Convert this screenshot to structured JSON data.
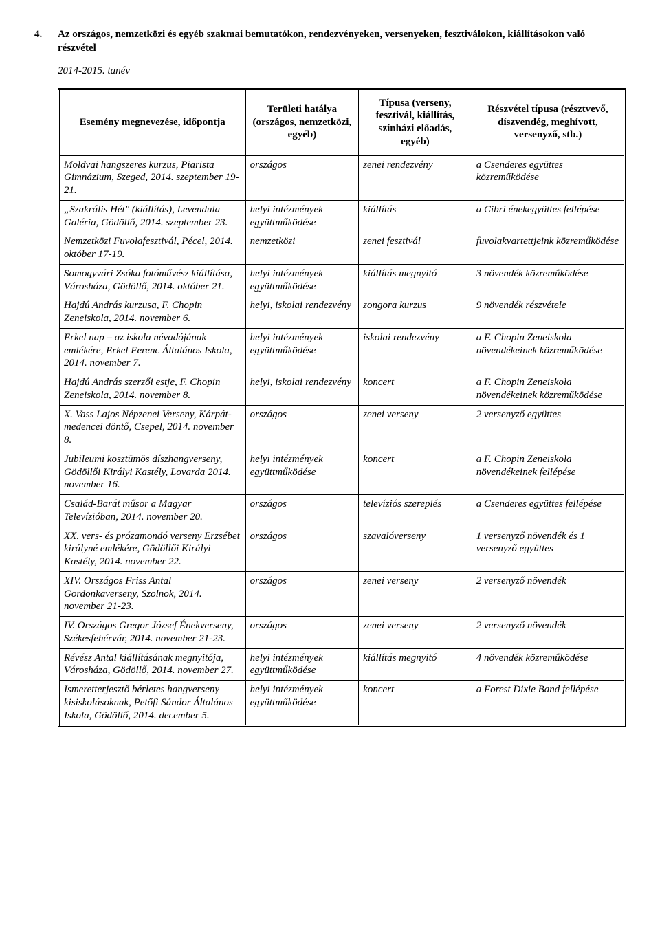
{
  "heading": {
    "number": "4.",
    "title": "Az országos, nemzetközi és egyéb szakmai bemutatókon, rendezvényeken, versenyeken, fesztiválokon, kiállításokon való részvétel"
  },
  "subyear": "2014-2015. tanév",
  "table": {
    "headers": [
      "Esemény megnevezése, időpontja",
      "Területi hatálya (országos, nemzetközi, egyéb)",
      "Típusa (verseny, fesztivál, kiállítás, színházi előadás, egyéb)",
      "Részvétel típusa (résztvevő, díszvendég, meghívott, versenyző, stb.)"
    ],
    "rows": [
      [
        "Moldvai hangszeres kurzus, Piarista Gimnázium, Szeged, 2014. szeptember 19-21.",
        "országos",
        "zenei rendezvény",
        "a Csenderes együttes közreműködése"
      ],
      [
        "„Szakrális Hét\" (kiállítás), Levendula Galéria, Gödöllő, 2014. szeptember 23.",
        "helyi intézmények együttműködése",
        "kiállítás",
        "a Cibri énekegyüttes fellépése"
      ],
      [
        "Nemzetközi Fuvolafesztivál, Pécel, 2014. október 17-19.",
        "nemzetközi",
        "zenei fesztivál",
        "fuvolakvartettjeink közreműködése"
      ],
      [
        "Somogyvári Zsóka fotóművész kiállítása, Városháza, Gödöllő, 2014. október 21.",
        "helyi intézmények együttműködése",
        "kiállítás megnyitó",
        "3 növendék közreműködése"
      ],
      [
        "Hajdú András kurzusa, F. Chopin Zeneiskola, 2014. november 6.",
        "helyi, iskolai rendezvény",
        "zongora kurzus",
        "9 növendék részvétele"
      ],
      [
        "Erkel nap – az iskola névadójának emlékére, Erkel Ferenc Általános Iskola, 2014. november 7.",
        "helyi intézmények együttműködése",
        "iskolai rendezvény",
        "a F. Chopin Zeneiskola növendékeinek közreműködése"
      ],
      [
        "Hajdú András szerzői estje, F. Chopin Zeneiskola, 2014. november 8.",
        "helyi, iskolai rendezvény",
        "koncert",
        "a F. Chopin Zeneiskola növendékeinek közreműködése"
      ],
      [
        "X. Vass Lajos Népzenei Verseny, Kárpát-medencei döntő, Csepel, 2014. november 8.",
        "országos",
        "zenei verseny",
        "2 versenyző együttes"
      ],
      [
        "Jubileumi kosztümös díszhangverseny, Gödöllői Királyi Kastély, Lovarda 2014. november 16.",
        "helyi intézmények együttműködése",
        "koncert",
        "a F. Chopin Zeneiskola növendékeinek fellépése"
      ],
      [
        "Család-Barát műsor a Magyar Televízióban, 2014. november 20.",
        "országos",
        "televíziós szereplés",
        "a Csenderes együttes fellépése"
      ],
      [
        "XX. vers- és prózamondó verseny Erzsébet királyné emlékére, Gödöllői Királyi Kastély, 2014. november 22.",
        "országos",
        "szavalóverseny",
        "1 versenyző növendék és 1 versenyző együttes"
      ],
      [
        "XIV. Országos Friss Antal Gordonkaverseny, Szolnok, 2014. november 21-23.",
        "országos",
        "zenei verseny",
        "2 versenyző növendék"
      ],
      [
        "IV. Országos Gregor József Énekverseny, Székesfehérvár, 2014. november 21-23.",
        "országos",
        "zenei verseny",
        "2 versenyző növendék"
      ],
      [
        "Révész Antal kiállításának megnyitója, Városháza, Gödöllő, 2014. november 27.",
        "helyi intézmények együttműködése",
        "kiállítás megnyitó",
        "4 növendék közreműködése"
      ],
      [
        "Ismeretterjesztő bérletes hangverseny kisiskolásoknak, Petőfi Sándor Általános Iskola, Gödöllő, 2014. december 5.",
        "helyi intézmények együttműködése",
        "koncert",
        "a Forest Dixie Band fellépése"
      ]
    ]
  }
}
